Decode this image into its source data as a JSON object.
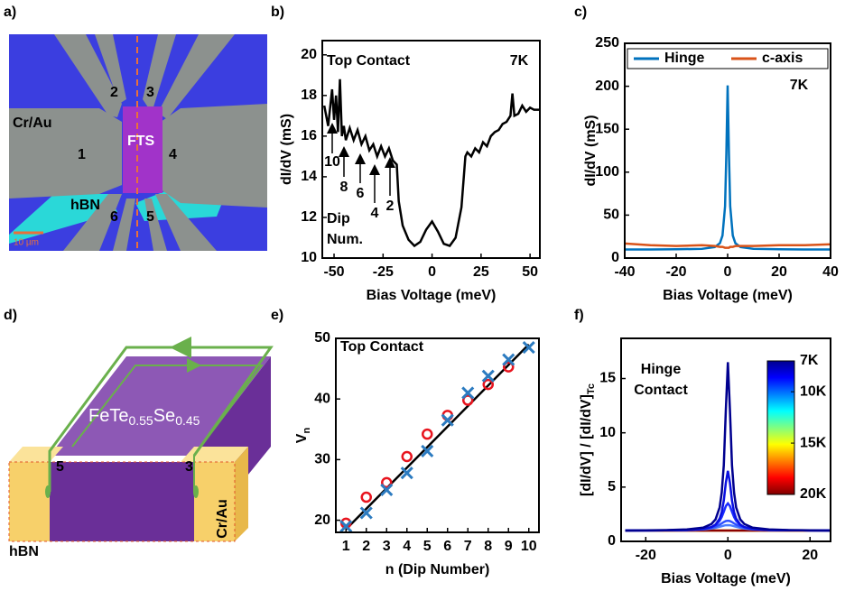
{
  "image_panels": [
    {
      "panel_label": "a)",
      "labels": [
        "2",
        "3",
        "Cr/Au",
        "FTS",
        "1",
        "4",
        "hBN",
        "6",
        "5",
        "10 µm"
      ]
    },
    {
      "panel_label": "d)",
      "formula": [
        "FeTe",
        "0.55",
        "Se",
        "0.45"
      ],
      "labels": [
        "5",
        "3",
        "Cr/Au",
        "hBN"
      ]
    }
  ],
  "chart_data": [
    {
      "type": "line",
      "panel_label": "b)",
      "x_label": "Bias Voltage (meV)",
      "y_label": "dI/dV (mS)",
      "annotations": [
        "Top Contact",
        "7K",
        "10",
        "8",
        "6",
        "4",
        "2",
        "Dip",
        "Num."
      ],
      "xlim": [
        -56,
        55
      ],
      "ylim": [
        10,
        20.7
      ],
      "xticks": [
        -50,
        -25,
        0,
        25,
        50
      ],
      "yticks": [
        10,
        12,
        14,
        16,
        18,
        20
      ],
      "x": [
        -55,
        -53,
        -51,
        -50,
        -49,
        -48,
        -47,
        -46,
        -45,
        -44,
        -42,
        -40,
        -38,
        -36,
        -34,
        -32,
        -30,
        -28,
        -26,
        -24,
        -22,
        -20,
        -18,
        -17,
        -15,
        -12,
        -9,
        -6,
        -3,
        0,
        3,
        6,
        9,
        12,
        15,
        17,
        18,
        20,
        22,
        24,
        26,
        28,
        30,
        32,
        34,
        36,
        38,
        40,
        41,
        42,
        44,
        46,
        48,
        50,
        52,
        55
      ],
      "series": [
        {
          "color": "#000000",
          "values": [
            17.5,
            16.5,
            18.3,
            16.8,
            18.0,
            16.2,
            18.8,
            16.0,
            16.5,
            15.8,
            16.4,
            15.8,
            16.3,
            15.6,
            16.0,
            15.3,
            15.6,
            15.0,
            15.5,
            15.0,
            15.4,
            14.8,
            14.6,
            12.8,
            11.6,
            10.9,
            10.6,
            10.8,
            11.4,
            11.8,
            11.3,
            10.7,
            10.6,
            11.0,
            12.5,
            15.0,
            15.2,
            15.0,
            15.4,
            15.2,
            15.7,
            15.5,
            16.0,
            16.2,
            16.3,
            16.6,
            16.7,
            17.0,
            18.1,
            17.0,
            17.1,
            17.5,
            17.2,
            17.4,
            17.3,
            17.3
          ]
        }
      ]
    },
    {
      "type": "line",
      "panel_label": "c)",
      "x_label": "Bias Voltage (meV)",
      "y_label": "dI/dV (mS)",
      "annotations": [
        "7K"
      ],
      "legend": "top",
      "xlim": [
        -40,
        40
      ],
      "ylim": [
        0,
        250
      ],
      "xticks": [
        -40,
        -20,
        0,
        20,
        40
      ],
      "yticks": [
        0,
        50,
        100,
        150,
        200,
        250
      ],
      "x": [
        -40,
        -30,
        -20,
        -10,
        -5,
        -3,
        -2,
        -1,
        -0.5,
        0,
        0.5,
        1,
        2,
        3,
        5,
        10,
        20,
        30,
        40
      ],
      "series": [
        {
          "name": "Hinge",
          "color": "#0072BD",
          "values": [
            10.0,
            10.0,
            10.2,
            10.7,
            12.8,
            17.3,
            26.2,
            60.3,
            122,
            201,
            122,
            60.3,
            26.2,
            17.3,
            12.8,
            10.7,
            10.2,
            10.0,
            10.0
          ]
        },
        {
          "name": "c-axis",
          "color": "#D95319",
          "values": [
            17,
            15,
            14,
            15,
            14,
            13,
            13,
            12,
            12,
            12,
            12,
            13,
            13,
            14,
            14,
            14,
            15,
            15,
            16
          ]
        }
      ]
    },
    {
      "type": "scatter",
      "panel_label": "e)",
      "x_label": "n (Dip Number)",
      "y_label": [
        "V",
        "n"
      ],
      "annotations": [
        "Top Contact"
      ],
      "xlim": [
        0.5,
        10.5
      ],
      "ylim": [
        18,
        50
      ],
      "xticks": [
        1,
        2,
        3,
        4,
        5,
        6,
        7,
        8,
        9,
        10
      ],
      "yticks": [
        20,
        30,
        40,
        50
      ],
      "x": [
        1,
        2,
        3,
        4,
        5,
        6,
        7,
        8,
        9,
        10
      ],
      "series": [
        {
          "marker": "line",
          "color": "#000000",
          "x": [
            1,
            10
          ],
          "values": [
            18.5,
            49
          ]
        },
        {
          "marker": "circle",
          "color": "#e8141e",
          "values": [
            19.5,
            23.8,
            26.2,
            30.5,
            34.2,
            37.3,
            39.8,
            42.4,
            45.3,
            null
          ]
        },
        {
          "marker": "cross",
          "color": "#2c7bc0",
          "values": [
            19,
            21.2,
            25,
            27.8,
            31.4,
            36.5,
            41,
            43.8,
            46.5,
            48.5
          ]
        }
      ]
    },
    {
      "type": "line",
      "panel_label": "f)",
      "x_label": "Bias Voltage (meV)",
      "y_label": [
        "[dI/dV] / [dI/dV]",
        "Tc"
      ],
      "annotations": [
        "Hinge",
        "Contact"
      ],
      "xlim": [
        -26,
        25
      ],
      "ylim": [
        0,
        18.7
      ],
      "xticks": [
        -20,
        0,
        20
      ],
      "yticks": [
        0,
        5,
        10,
        15
      ],
      "colorbar": {
        "colormap": "jet",
        "lim": [
          7,
          20
        ],
        "ticks": [
          {
            "value": 7,
            "label": "7K"
          },
          {
            "value": 10,
            "label": "10K"
          },
          {
            "value": 15,
            "label": "15K"
          },
          {
            "value": 20,
            "label": "20K"
          }
        ]
      },
      "x": [
        -25,
        -20,
        -15,
        -10,
        -6,
        -4,
        -3,
        -2,
        -1.5,
        -1,
        -0.5,
        0,
        0.5,
        1,
        1.5,
        2,
        3,
        4,
        6,
        10,
        15,
        20,
        25
      ],
      "series": [
        {
          "color": "#e8a000",
          "values": [
            1,
            1,
            1,
            1,
            1,
            1,
            1,
            1,
            1,
            1,
            1,
            1,
            1,
            1,
            1,
            1,
            1,
            1,
            1,
            1,
            1,
            1,
            1
          ]
        },
        {
          "color": "#8b0000",
          "values": [
            1,
            1,
            1,
            1,
            1,
            1,
            1,
            1,
            1,
            1,
            1,
            1,
            1,
            1,
            1,
            1,
            1,
            1,
            1,
            1,
            1,
            1,
            1
          ]
        },
        {
          "color": "#4a7cff",
          "values": [
            1.01,
            1.01,
            1.02,
            1.04,
            1.1,
            1.18,
            1.25,
            1.35,
            1.4,
            1.45,
            1.49,
            1.5,
            1.49,
            1.45,
            1.4,
            1.35,
            1.25,
            1.18,
            1.1,
            1.04,
            1.02,
            1.01,
            1.01
          ]
        },
        {
          "color": "#2f50ff",
          "values": [
            1.01,
            1.01,
            1.02,
            1.05,
            1.13,
            1.25,
            1.37,
            1.55,
            1.66,
            1.78,
            1.87,
            1.9,
            1.87,
            1.78,
            1.66,
            1.55,
            1.37,
            1.25,
            1.13,
            1.05,
            1.02,
            1.01,
            1.01
          ]
        },
        {
          "color": "#1a2cff",
          "values": [
            1.01,
            1.01,
            1.02,
            1.05,
            1.14,
            1.31,
            1.5,
            1.9,
            2.25,
            2.73,
            3.25,
            3.5,
            3.25,
            2.73,
            2.25,
            1.9,
            1.5,
            1.31,
            1.14,
            1.05,
            1.02,
            1.01,
            1.01
          ]
        },
        {
          "color": "#0a10e0",
          "values": [
            1.01,
            1.01,
            1.02,
            1.05,
            1.15,
            1.32,
            1.55,
            2.1,
            2.69,
            3.75,
            5.4,
            6.5,
            5.4,
            3.75,
            2.69,
            2.1,
            1.55,
            1.32,
            1.15,
            1.05,
            1.02,
            1.01,
            1.01
          ]
        },
        {
          "color": "#00008f",
          "values": [
            1.0,
            1.02,
            1.04,
            1.1,
            1.27,
            1.6,
            2.03,
            3.14,
            4.5,
            7.0,
            12.1,
            16.5,
            12.1,
            7.0,
            4.5,
            3.14,
            2.03,
            1.6,
            1.27,
            1.1,
            1.04,
            1.02,
            1.0
          ]
        }
      ]
    }
  ]
}
